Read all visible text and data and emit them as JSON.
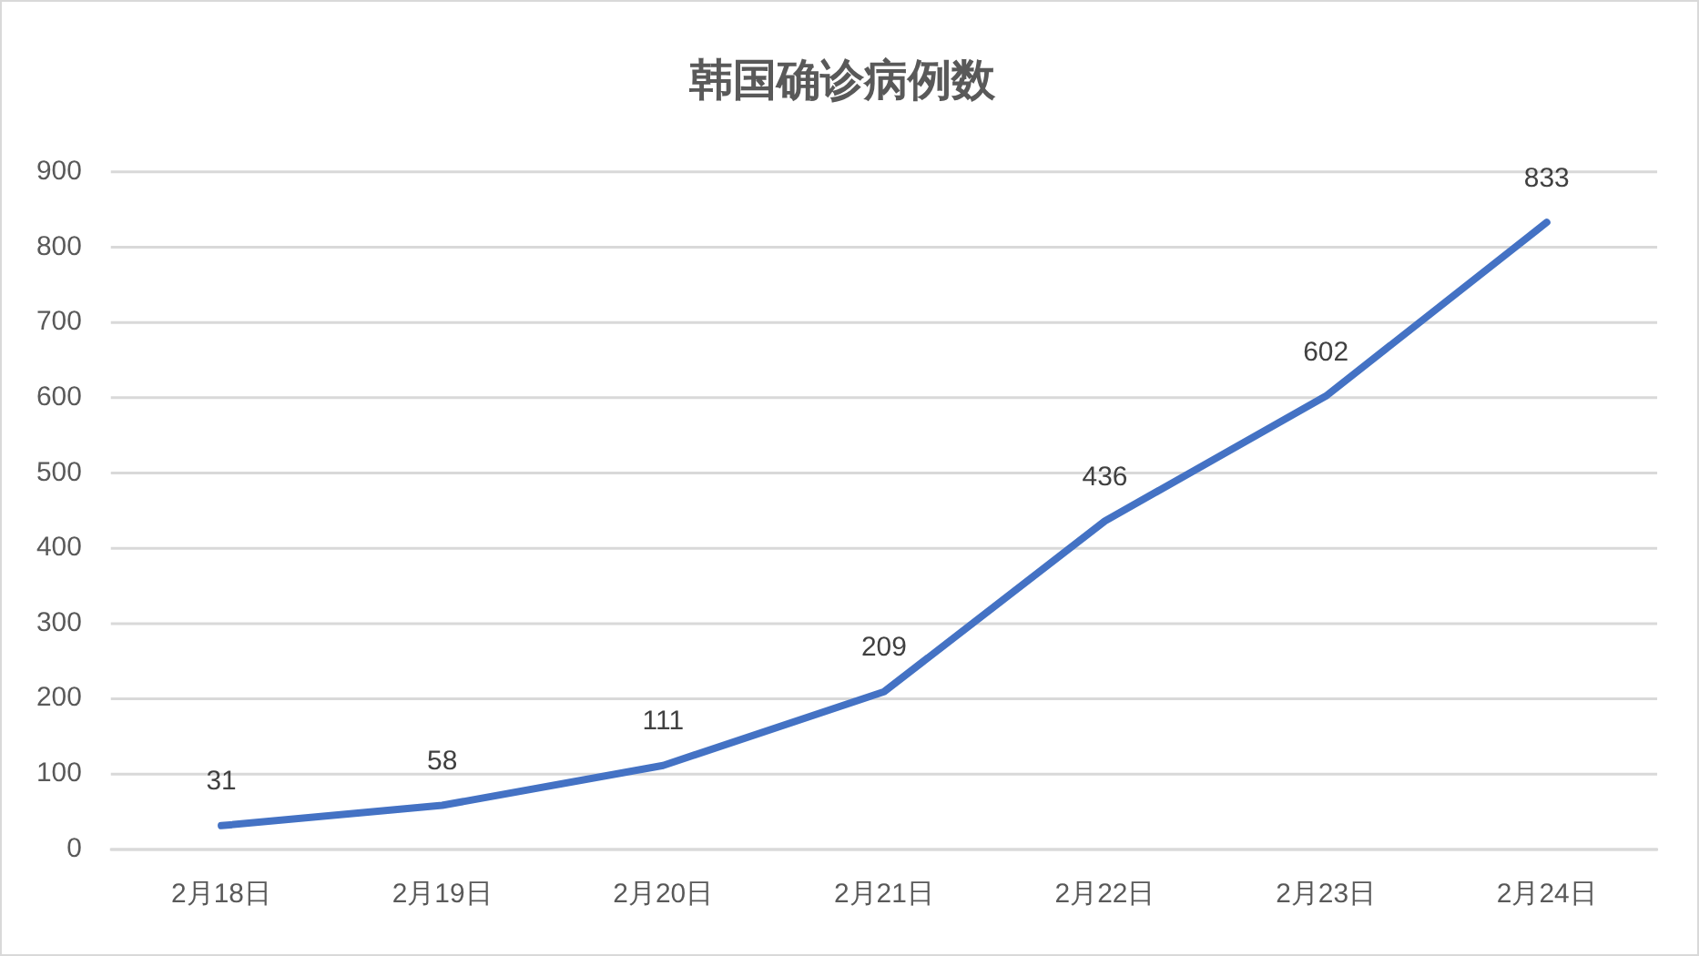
{
  "chart_data": {
    "type": "line",
    "title": "韩国确诊病例数",
    "categories": [
      "2月18日",
      "2月19日",
      "2月20日",
      "2月21日",
      "2月22日",
      "2月23日",
      "2月24日"
    ],
    "values": [
      31,
      58,
      111,
      209,
      436,
      602,
      833
    ],
    "color": "#4472c4",
    "ylim": [
      0,
      900
    ],
    "yticks": [
      0,
      100,
      200,
      300,
      400,
      500,
      600,
      700,
      800,
      900
    ],
    "grid": "y",
    "data_labels": true,
    "marker": "none",
    "line_style": "solid",
    "legend": false
  }
}
